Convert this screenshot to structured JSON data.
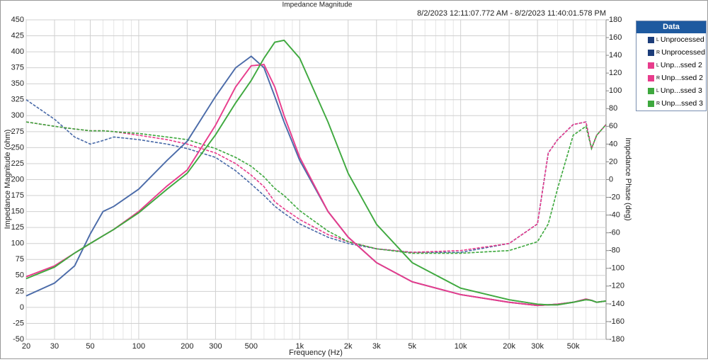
{
  "chart_data": {
    "type": "line",
    "title": "Impedance Magnitude",
    "subtitle": "8/2/2023 12:11:07.772 AM - 8/2/2023 11:40:01.578 PM",
    "xlabel": "Frequency (Hz)",
    "ylabel": "Impedance Magnitude (ohm)",
    "y2label": "Impedance Phase (deg)",
    "legend_title": "Data",
    "xscale": "log",
    "grid": true,
    "xlim": [
      20,
      80000
    ],
    "xticks": [
      20,
      30,
      50,
      100,
      200,
      300,
      500,
      {
        "value": 1000,
        "label": "1k"
      },
      {
        "value": 2000,
        "label": "2k"
      },
      {
        "value": 3000,
        "label": "3k"
      },
      {
        "value": 5000,
        "label": "5k"
      },
      {
        "value": 10000,
        "label": "10k"
      },
      {
        "value": 20000,
        "label": "20k"
      },
      {
        "value": 30000,
        "label": "30k"
      },
      {
        "value": 50000,
        "label": "50k"
      }
    ],
    "xminorticks": [
      40,
      60,
      70,
      80,
      90,
      400,
      600,
      700,
      800,
      900,
      4000,
      6000,
      7000,
      8000,
      9000,
      40000,
      60000,
      70000
    ],
    "ylim": [
      -50,
      450
    ],
    "yticks": [
      -50,
      -25,
      0,
      25,
      50,
      75,
      100,
      125,
      150,
      175,
      200,
      225,
      250,
      275,
      300,
      325,
      350,
      375,
      400,
      425,
      450
    ],
    "y2lim": [
      -180,
      180
    ],
    "y2ticks": [
      -180,
      -160,
      -140,
      -120,
      -100,
      -80,
      -60,
      -40,
      -20,
      0,
      20,
      40,
      60,
      80,
      100,
      120,
      140,
      160,
      180
    ],
    "x": [
      20,
      30,
      40,
      50,
      60,
      70,
      100,
      150,
      200,
      300,
      400,
      500,
      600,
      700,
      800,
      1000,
      1500,
      2000,
      3000,
      5000,
      10000,
      20000,
      30000,
      35000,
      40000,
      50000,
      60000,
      65000,
      70000,
      80000
    ],
    "series": [
      {
        "channel": "L",
        "name": "Unprocessed",
        "color": "#4a6aa8",
        "values": [
          18,
          38,
          65,
          115,
          150,
          158,
          185,
          230,
          260,
          330,
          375,
          393,
          375,
          330,
          290,
          230,
          150,
          110,
          70,
          40,
          20,
          8,
          3,
          4,
          5,
          8,
          13,
          11,
          8,
          10
        ],
        "phase": {
          "axis": "y2",
          "values": [
            90,
            68,
            48,
            40,
            44,
            48,
            45,
            40,
            35,
            25,
            10,
            -5,
            -18,
            -30,
            -38,
            -50,
            -65,
            -72,
            -78,
            -82,
            -82,
            -72,
            -50,
            30,
            45,
            62,
            65,
            35,
            50,
            62
          ]
        }
      },
      {
        "channel": "R",
        "name": "Unprocessed",
        "color": "#4a6aa8",
        "values": [
          18,
          38,
          65,
          115,
          150,
          158,
          185,
          230,
          260,
          330,
          375,
          393,
          375,
          330,
          290,
          230,
          150,
          110,
          70,
          40,
          20,
          8,
          3,
          4,
          5,
          8,
          13,
          11,
          8,
          10
        ],
        "phase": {
          "axis": "y2",
          "values": [
            90,
            68,
            48,
            40,
            44,
            48,
            45,
            40,
            35,
            25,
            10,
            -5,
            -18,
            -30,
            -38,
            -50,
            -65,
            -72,
            -78,
            -82,
            -82,
            -72,
            -50,
            30,
            45,
            62,
            65,
            35,
            50,
            62
          ]
        }
      },
      {
        "channel": "L",
        "name": "Unp...ssed 2",
        "color": "#e83c8c",
        "values": [
          48,
          65,
          85,
          100,
          112,
          122,
          150,
          190,
          215,
          285,
          345,
          378,
          380,
          345,
          300,
          235,
          150,
          110,
          70,
          40,
          20,
          8,
          3,
          4,
          5,
          8,
          13,
          11,
          8,
          10
        ],
        "phase": {
          "axis": "y2",
          "values": [
            65,
            60,
            57,
            55,
            55,
            54,
            50,
            45,
            40,
            30,
            18,
            5,
            -8,
            -25,
            -33,
            -45,
            -62,
            -70,
            -78,
            -82,
            -80,
            -72,
            -50,
            30,
            45,
            62,
            65,
            35,
            50,
            62
          ]
        }
      },
      {
        "channel": "R",
        "name": "Unp...ssed 2",
        "color": "#e83c8c",
        "values": [
          48,
          65,
          85,
          100,
          112,
          122,
          150,
          190,
          215,
          285,
          345,
          378,
          380,
          345,
          300,
          235,
          150,
          110,
          70,
          40,
          20,
          8,
          3,
          4,
          5,
          8,
          13,
          11,
          8,
          10
        ],
        "phase": {
          "axis": "y2",
          "values": [
            65,
            60,
            57,
            55,
            55,
            54,
            50,
            45,
            40,
            30,
            18,
            5,
            -8,
            -25,
            -33,
            -45,
            -62,
            -70,
            -78,
            -82,
            -80,
            -72,
            -50,
            30,
            45,
            62,
            65,
            35,
            50,
            62
          ]
        }
      },
      {
        "channel": "L",
        "name": "Unp...ssed 3",
        "color": "#3ea83e",
        "values": [
          45,
          63,
          85,
          100,
          112,
          122,
          148,
          185,
          210,
          270,
          320,
          355,
          390,
          415,
          418,
          390,
          290,
          210,
          130,
          70,
          30,
          12,
          5,
          4,
          4,
          8,
          12,
          11,
          8,
          10
        ],
        "phase": {
          "axis": "y2",
          "values": [
            65,
            60,
            57,
            55,
            55,
            54,
            52,
            48,
            45,
            35,
            25,
            15,
            3,
            -10,
            -18,
            -35,
            -58,
            -70,
            -78,
            -83,
            -83,
            -80,
            -70,
            -50,
            -10,
            50,
            60,
            35,
            50,
            62
          ]
        }
      },
      {
        "channel": "R",
        "name": "Unp...ssed 3",
        "color": "#3ea83e",
        "values": [
          45,
          63,
          85,
          100,
          112,
          122,
          148,
          185,
          210,
          270,
          320,
          355,
          390,
          415,
          418,
          390,
          290,
          210,
          130,
          70,
          30,
          12,
          5,
          4,
          4,
          8,
          12,
          11,
          8,
          10
        ],
        "phase": {
          "axis": "y2",
          "values": [
            65,
            60,
            57,
            55,
            55,
            54,
            52,
            48,
            45,
            35,
            25,
            15,
            3,
            -10,
            -18,
            -35,
            -58,
            -70,
            -78,
            -83,
            -83,
            -80,
            -70,
            -50,
            -10,
            50,
            60,
            35,
            50,
            62
          ]
        }
      }
    ]
  }
}
